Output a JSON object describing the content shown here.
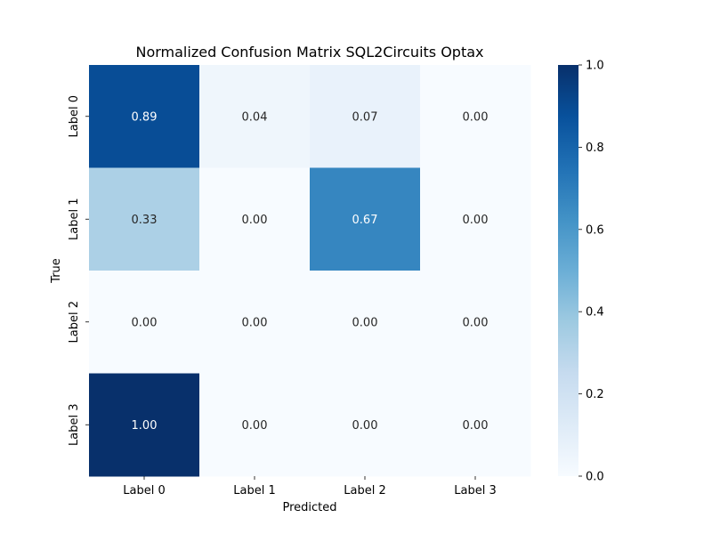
{
  "chart_data": {
    "type": "heatmap",
    "title": "Normalized Confusion Matrix SQL2Circuits Optax",
    "xlabel": "Predicted",
    "ylabel": "True",
    "x_categories": [
      "Label 0",
      "Label 1",
      "Label 2",
      "Label 3"
    ],
    "y_categories": [
      "Label 0",
      "Label 1",
      "Label 2",
      "Label 3"
    ],
    "values": [
      [
        0.89,
        0.04,
        0.07,
        0.0
      ],
      [
        0.33,
        0.0,
        0.67,
        0.0
      ],
      [
        0.0,
        0.0,
        0.0,
        0.0
      ],
      [
        1.0,
        0.0,
        0.0,
        0.0
      ]
    ],
    "value_format": "0.00",
    "colormap": "Blues",
    "vmin": 0.0,
    "vmax": 1.0,
    "colorbar_ticks": [
      "0.0",
      "0.2",
      "0.4",
      "0.6",
      "0.8",
      "1.0"
    ],
    "colors": {
      "low": "#f7fbff",
      "high": "#08306b",
      "text_dark": "#262626",
      "text_light": "#ffffff"
    }
  }
}
